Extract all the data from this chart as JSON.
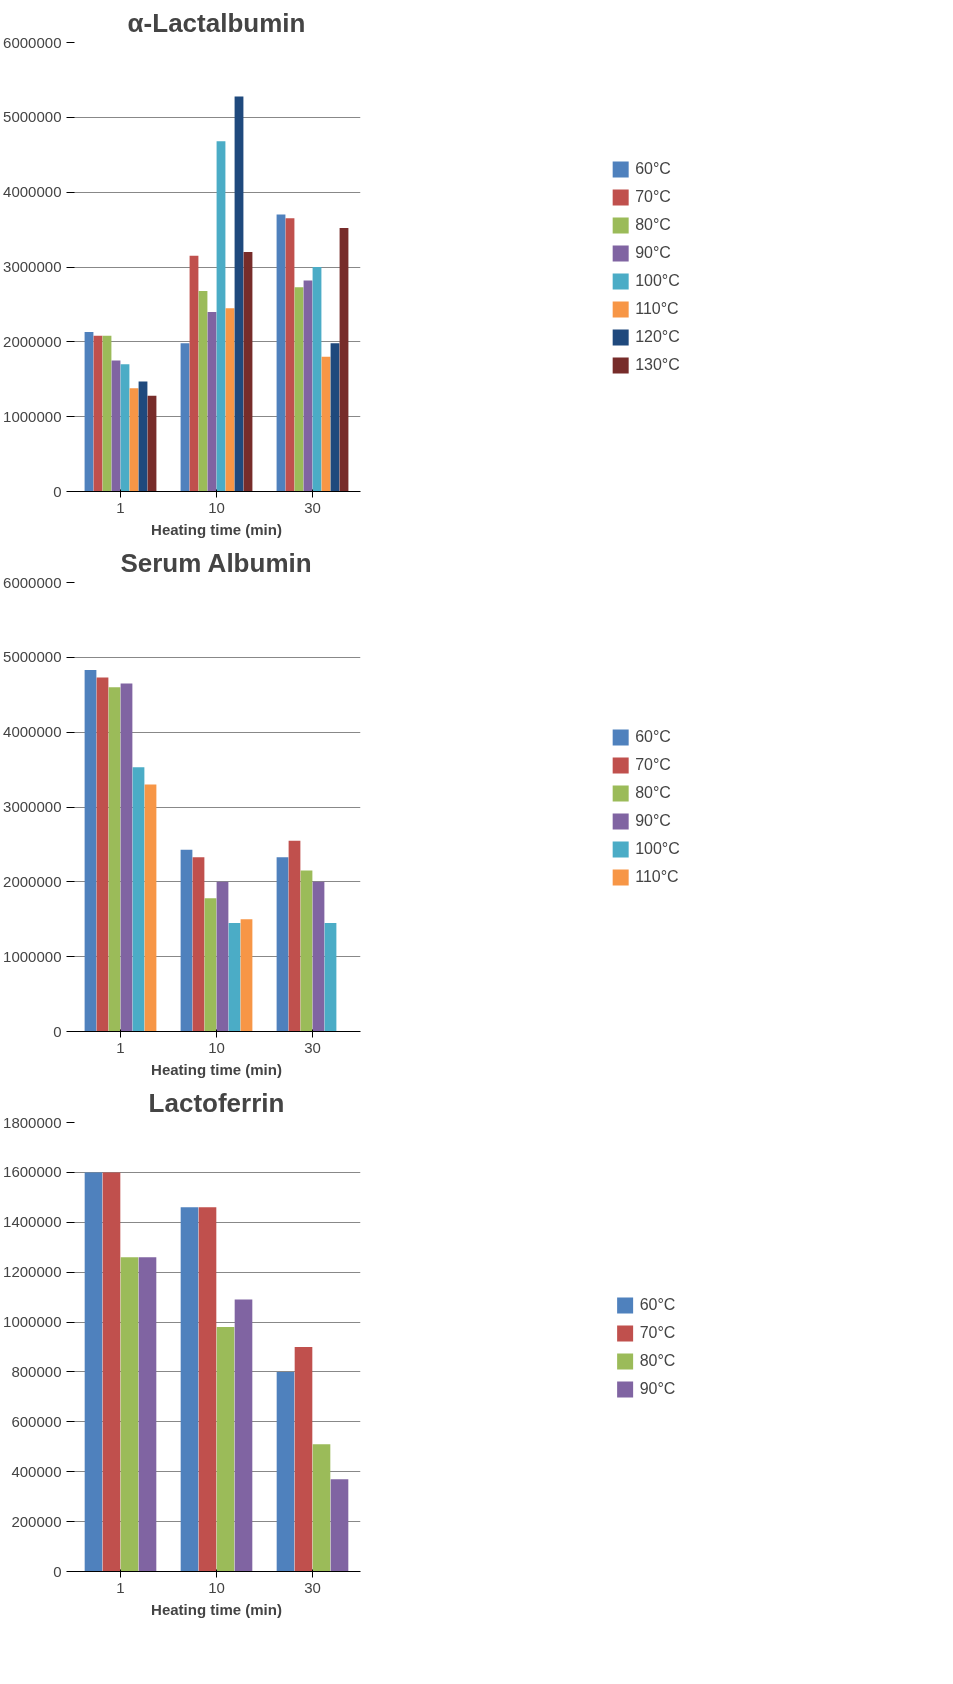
{
  "chart_data": [
    {
      "type": "bar",
      "title": "α-Lactalbumin",
      "xlabel": "Heating time (min)",
      "categories": [
        "1",
        "10",
        "30"
      ],
      "ylim": [
        0,
        6000000
      ],
      "yticks": [
        0,
        1000000,
        2000000,
        3000000,
        4000000,
        5000000,
        6000000
      ],
      "grid": "y",
      "legend": "right",
      "series": [
        {
          "name": "60°C",
          "color": "#4f81bd",
          "values": [
            2130000,
            1980000,
            3700000
          ]
        },
        {
          "name": "70°C",
          "color": "#c0504d",
          "values": [
            2080000,
            3150000,
            3650000
          ]
        },
        {
          "name": "80°C",
          "color": "#9bbb59",
          "values": [
            2080000,
            2680000,
            2730000
          ]
        },
        {
          "name": "90°C",
          "color": "#8064a2",
          "values": [
            1750000,
            2400000,
            2820000
          ]
        },
        {
          "name": "100°C",
          "color": "#4bacc6",
          "values": [
            1700000,
            4680000,
            3000000
          ]
        },
        {
          "name": "110°C",
          "color": "#f79646",
          "values": [
            1380000,
            2450000,
            1800000
          ]
        },
        {
          "name": "120°C",
          "color": "#1f497d",
          "values": [
            1470000,
            5280000,
            1980000
          ]
        },
        {
          "name": "130°C",
          "color": "#772c2a",
          "values": [
            1280000,
            3200000,
            3520000
          ]
        }
      ]
    },
    {
      "type": "bar",
      "title": "Serum Albumin",
      "xlabel": "Heating time (min)",
      "categories": [
        "1",
        "10",
        "30"
      ],
      "ylim": [
        0,
        6000000
      ],
      "yticks": [
        0,
        1000000,
        2000000,
        3000000,
        4000000,
        5000000,
        6000000
      ],
      "grid": "y",
      "legend": "right",
      "series": [
        {
          "name": "60°C",
          "color": "#4f81bd",
          "values": [
            4830000,
            2430000,
            2330000
          ]
        },
        {
          "name": "70°C",
          "color": "#c0504d",
          "values": [
            4730000,
            2330000,
            2550000
          ]
        },
        {
          "name": "80°C",
          "color": "#9bbb59",
          "values": [
            4600000,
            1780000,
            2150000
          ]
        },
        {
          "name": "90°C",
          "color": "#8064a2",
          "values": [
            4650000,
            2000000,
            2000000
          ]
        },
        {
          "name": "100°C",
          "color": "#4bacc6",
          "values": [
            3530000,
            1450000,
            1450000
          ]
        },
        {
          "name": "110°C",
          "color": "#f79646",
          "values": [
            3300000,
            1500000,
            null
          ]
        }
      ]
    },
    {
      "type": "bar",
      "title": "Lactoferrin",
      "xlabel": "Heating time (min)",
      "categories": [
        "1",
        "10",
        "30"
      ],
      "ylim": [
        0,
        1800000
      ],
      "yticks": [
        0,
        200000,
        400000,
        600000,
        800000,
        1000000,
        1200000,
        1400000,
        1600000,
        1800000
      ],
      "grid": "y",
      "legend": "right",
      "series": [
        {
          "name": "60°C",
          "color": "#4f81bd",
          "values": [
            1600000,
            1460000,
            800000
          ]
        },
        {
          "name": "70°C",
          "color": "#c0504d",
          "values": [
            1600000,
            1460000,
            900000
          ]
        },
        {
          "name": "80°C",
          "color": "#9bbb59",
          "values": [
            1260000,
            980000,
            510000
          ]
        },
        {
          "name": "90°C",
          "color": "#8064a2",
          "values": [
            1260000,
            1090000,
            370000
          ]
        }
      ]
    }
  ]
}
